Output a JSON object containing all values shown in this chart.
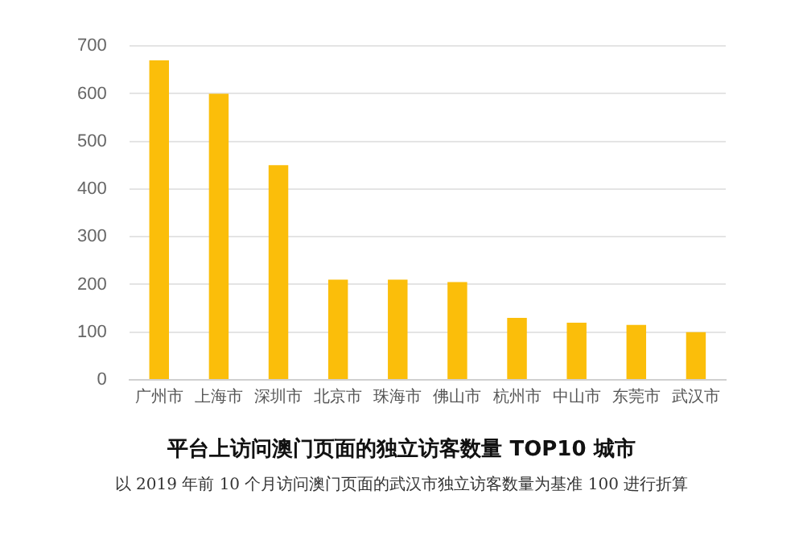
{
  "chart_data": {
    "type": "bar",
    "title": "平台上访问澳门页面的独立访客数量 TOP10 城市",
    "categories": [
      "广州市",
      "上海市",
      "深圳市",
      "北京市",
      "珠海市",
      "佛山市",
      "杭州市",
      "中山市",
      "东莞市",
      "武汉市"
    ],
    "values": [
      670,
      600,
      450,
      210,
      210,
      205,
      130,
      120,
      115,
      100
    ],
    "color": "#fbbe0a",
    "ylim": [
      0,
      700
    ],
    "yticks": [
      0,
      100,
      200,
      300,
      400,
      500,
      600,
      700
    ],
    "grid": "y",
    "annotations": [
      "以 2019 年前 10 个月访问澳门页面的武汉市独立访客数量为基准 100 进行折算"
    ]
  }
}
